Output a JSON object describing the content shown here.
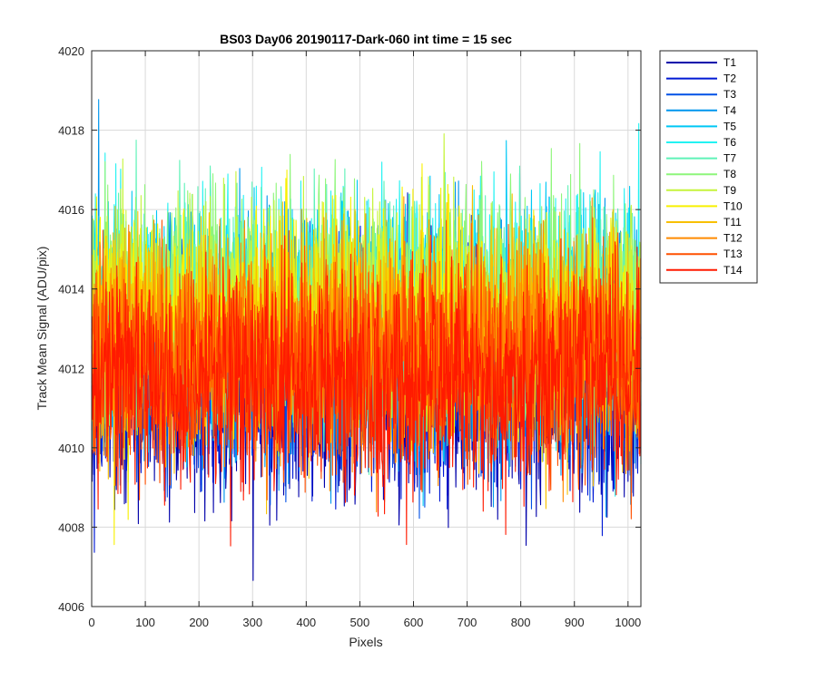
{
  "chart_data": {
    "type": "line",
    "title": "BS03 Day06 20190117-Dark-060 int time = 15 sec",
    "xlabel": "Pixels",
    "ylabel": "Track Mean Signal (ADU/pix)",
    "xlim": [
      0,
      1024
    ],
    "ylim": [
      4006,
      4020
    ],
    "xticks": [
      0,
      100,
      200,
      300,
      400,
      500,
      600,
      700,
      800,
      900,
      1000
    ],
    "yticks": [
      4006,
      4008,
      4010,
      4012,
      4014,
      4016,
      4018,
      4020
    ],
    "grid": true,
    "legend_position": "outside-right-top",
    "series": [
      {
        "name": "T1",
        "color": "#0000aa",
        "mean_value": 4011.4,
        "noise_amplitude": 1.6
      },
      {
        "name": "T2",
        "color": "#0019d4",
        "mean_value": 4011.8,
        "noise_amplitude": 1.6
      },
      {
        "name": "T3",
        "color": "#0050e6",
        "mean_value": 4012.2,
        "noise_amplitude": 1.6
      },
      {
        "name": "T4",
        "color": "#0096ee",
        "mean_value": 4012.8,
        "noise_amplitude": 1.8
      },
      {
        "name": "T5",
        "color": "#00c8f5",
        "mean_value": 4013.2,
        "noise_amplitude": 1.7
      },
      {
        "name": "T6",
        "color": "#23f2f2",
        "mean_value": 4013.4,
        "noise_amplitude": 1.7
      },
      {
        "name": "T7",
        "color": "#5ff2b8",
        "mean_value": 4013.5,
        "noise_amplitude": 1.7
      },
      {
        "name": "T8",
        "color": "#8ef67a",
        "mean_value": 4013.6,
        "noise_amplitude": 1.7
      },
      {
        "name": "T9",
        "color": "#c6f43c",
        "mean_value": 4013.4,
        "noise_amplitude": 1.6
      },
      {
        "name": "T10",
        "color": "#f8f000",
        "mean_value": 4013.2,
        "noise_amplitude": 1.6
      },
      {
        "name": "T11",
        "color": "#f8c000",
        "mean_value": 4012.8,
        "noise_amplitude": 1.6
      },
      {
        "name": "T12",
        "color": "#ff8a00",
        "mean_value": 4012.5,
        "noise_amplitude": 1.6
      },
      {
        "name": "T13",
        "color": "#ff5000",
        "mean_value": 4012.1,
        "noise_amplitude": 1.6
      },
      {
        "name": "T14",
        "color": "#ff1a00",
        "mean_value": 4011.7,
        "noise_amplitude": 1.6
      }
    ]
  }
}
